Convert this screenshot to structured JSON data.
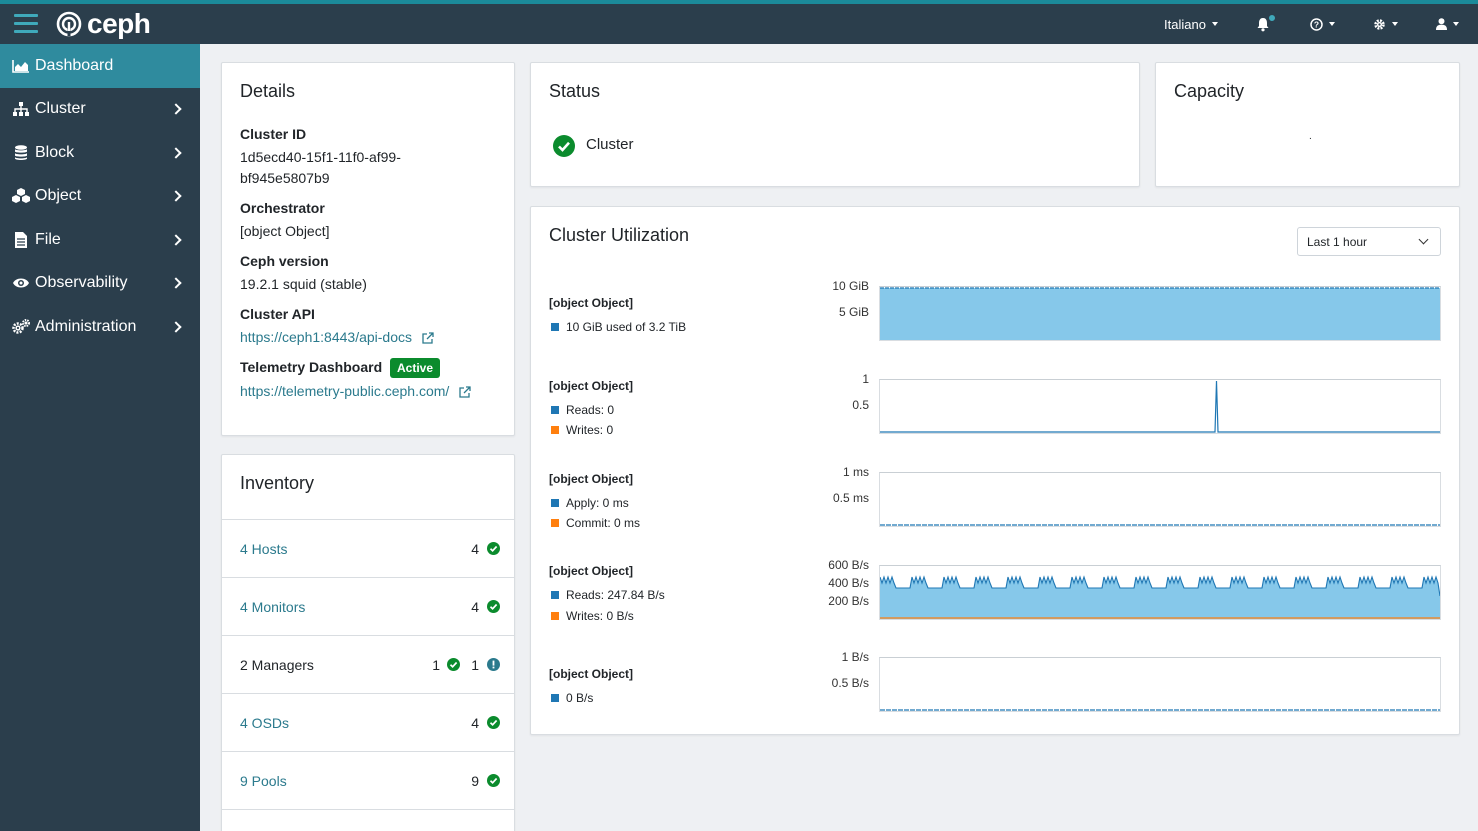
{
  "topbar": {
    "brand": "ceph",
    "language": "Italiano",
    "icons": [
      "hamburger-icon",
      "bell-icon",
      "help-icon",
      "gear-icon",
      "user-icon"
    ],
    "accent_color": "#3fa9bb",
    "bar_color": "#2b3e4c"
  },
  "sidebar": {
    "items": [
      {
        "label": "Dashboard",
        "icon": "area-chart-icon",
        "active": true
      },
      {
        "label": "Cluster",
        "icon": "sitemap-icon"
      },
      {
        "label": "Block",
        "icon": "database-icon"
      },
      {
        "label": "Object",
        "icon": "cubes-icon"
      },
      {
        "label": "File",
        "icon": "file-icon"
      },
      {
        "label": "Observability",
        "icon": "eye-icon"
      },
      {
        "label": "Administration",
        "icon": "cogs-icon"
      }
    ]
  },
  "details": {
    "title": "Details",
    "cluster_id_label": "Cluster ID",
    "cluster_id_line1": "1d5ecd40-15f1-11f0-af99-",
    "cluster_id_line2": "bf945e5807b9",
    "orchestrator_label": "Orchestrator",
    "orchestrator_value": "[object Object]",
    "version_label": "Ceph version",
    "version_value": "19.2.1 squid (stable)",
    "api_label": "Cluster API",
    "api_value": "https://ceph1:8443/api-docs",
    "telemetry_label": "Telemetry Dashboard",
    "telemetry_badge": "Active",
    "telemetry_value": "https://telemetry-public.ceph.com/"
  },
  "status": {
    "title": "Status",
    "cluster_label": "Cluster"
  },
  "capacity": {
    "title": "Capacity",
    "placeholder": "."
  },
  "inventory": {
    "title": "Inventory",
    "rows": [
      {
        "label": "4 Hosts",
        "count": "4"
      },
      {
        "label": "4 Monitors",
        "count": "4"
      },
      {
        "label": "2 Managers",
        "count_ok": "1",
        "count_warn": "1"
      },
      {
        "label": "4 OSDs",
        "count": "4"
      },
      {
        "label": "9 Pools",
        "count": "9"
      }
    ]
  },
  "utilization": {
    "title": "Cluster Utilization",
    "range_select": "Last 1 hour",
    "metrics": [
      {
        "title": "[object Object]",
        "legend": [
          "10 GiB used of 3.2 TiB"
        ],
        "yticks": [
          "10 GiB",
          "5 GiB"
        ]
      },
      {
        "title": "[object Object]",
        "legend": [
          "Reads: 0",
          "Writes: 0"
        ],
        "yticks": [
          "1",
          "0.5"
        ]
      },
      {
        "title": "[object Object]",
        "legend": [
          "Apply: 0 ms",
          "Commit: 0 ms"
        ],
        "yticks": [
          "1 ms",
          "0.5 ms"
        ]
      },
      {
        "title": "[object Object]",
        "legend": [
          "Reads: 247.84 B/s",
          "Writes: 0 B/s"
        ],
        "yticks": [
          "600 B/s",
          "400 B/s",
          "200 B/s"
        ]
      },
      {
        "title": "[object Object]",
        "legend": [
          "0 B/s"
        ],
        "yticks": [
          "1 B/s",
          "0.5 B/s"
        ]
      }
    ],
    "colors": {
      "blue": "#1f77b4",
      "orange": "#ff7f0e",
      "fill": "#86c8ea"
    }
  }
}
